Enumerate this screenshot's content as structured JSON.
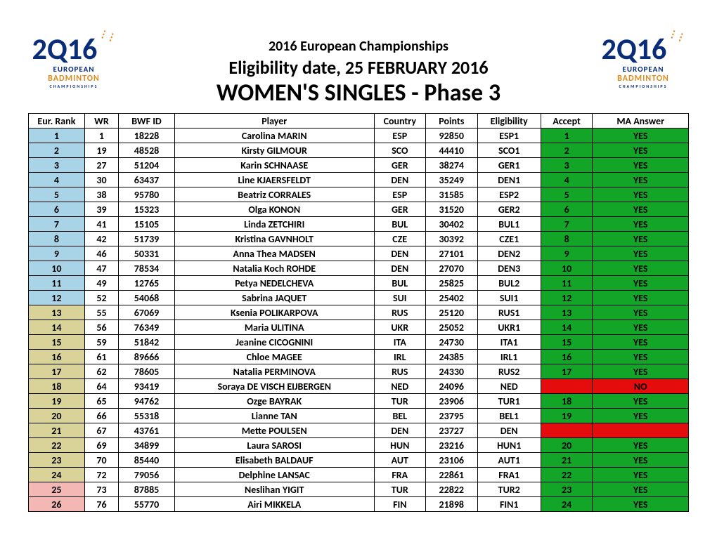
{
  "header": {
    "title1": "2016 European Championships",
    "title2": "Eligibility date, 25 FEBRUARY 2016",
    "title3": "WOMEN'S SINGLES - Phase 3"
  },
  "logo": {
    "top_glyphs": "2Q16",
    "line1": "EUROPEAN",
    "line2": "BADMINTON",
    "line3": "CHAMPIONSHIPS"
  },
  "table": {
    "columns": [
      "Eur. Rank",
      "WR",
      "BWF ID",
      "Player",
      "Country",
      "Points",
      "Eligibility",
      "Accept",
      "MA Answer"
    ],
    "colors": {
      "rank_blue": "#a9d4e8",
      "rank_olive": "#d9d39a",
      "rank_pink": "#f3b8b4",
      "yes_green": "#12a527",
      "no_red": "#e40c0c",
      "header_bg": "#ffffff",
      "border": "#000000",
      "text": "#000000"
    },
    "rows": [
      {
        "eur_rank": "1",
        "rank_color": "rank_blue",
        "wr": "1",
        "bwf": "18228",
        "player": "Carolina MARIN",
        "country": "ESP",
        "points": "92850",
        "elig": "ESP1",
        "accept": "1",
        "ma": "YES",
        "ma_color": "yes_green"
      },
      {
        "eur_rank": "2",
        "rank_color": "rank_blue",
        "wr": "19",
        "bwf": "48528",
        "player": "Kirsty GILMOUR",
        "country": "SCO",
        "points": "44410",
        "elig": "SCO1",
        "accept": "2",
        "ma": "YES",
        "ma_color": "yes_green"
      },
      {
        "eur_rank": "3",
        "rank_color": "rank_blue",
        "wr": "27",
        "bwf": "51204",
        "player": "Karin SCHNAASE",
        "country": "GER",
        "points": "38274",
        "elig": "GER1",
        "accept": "3",
        "ma": "YES",
        "ma_color": "yes_green"
      },
      {
        "eur_rank": "4",
        "rank_color": "rank_blue",
        "wr": "30",
        "bwf": "63437",
        "player": "Line KJAERSFELDT",
        "country": "DEN",
        "points": "35249",
        "elig": "DEN1",
        "accept": "4",
        "ma": "YES",
        "ma_color": "yes_green"
      },
      {
        "eur_rank": "5",
        "rank_color": "rank_blue",
        "wr": "38",
        "bwf": "95780",
        "player": "Beatriz CORRALES",
        "country": "ESP",
        "points": "31585",
        "elig": "ESP2",
        "accept": "5",
        "ma": "YES",
        "ma_color": "yes_green"
      },
      {
        "eur_rank": "6",
        "rank_color": "rank_blue",
        "wr": "39",
        "bwf": "15323",
        "player": "Olga KONON",
        "country": "GER",
        "points": "31520",
        "elig": "GER2",
        "accept": "6",
        "ma": "YES",
        "ma_color": "yes_green"
      },
      {
        "eur_rank": "7",
        "rank_color": "rank_blue",
        "wr": "41",
        "bwf": "15105",
        "player": "Linda ZETCHIRI",
        "country": "BUL",
        "points": "30402",
        "elig": "BUL1",
        "accept": "7",
        "ma": "YES",
        "ma_color": "yes_green"
      },
      {
        "eur_rank": "8",
        "rank_color": "rank_blue",
        "wr": "42",
        "bwf": "51739",
        "player": "Kristina GAVNHOLT",
        "country": "CZE",
        "points": "30392",
        "elig": "CZE1",
        "accept": "8",
        "ma": "YES",
        "ma_color": "yes_green"
      },
      {
        "eur_rank": "9",
        "rank_color": "rank_blue",
        "wr": "46",
        "bwf": "50331",
        "player": "Anna Thea MADSEN",
        "country": "DEN",
        "points": "27101",
        "elig": "DEN2",
        "accept": "9",
        "ma": "YES",
        "ma_color": "yes_green"
      },
      {
        "eur_rank": "10",
        "rank_color": "rank_blue",
        "wr": "47",
        "bwf": "78534",
        "player": "Natalia Koch ROHDE",
        "country": "DEN",
        "points": "27070",
        "elig": "DEN3",
        "accept": "10",
        "ma": "YES",
        "ma_color": "yes_green"
      },
      {
        "eur_rank": "11",
        "rank_color": "rank_blue",
        "wr": "49",
        "bwf": "12765",
        "player": "Petya NEDELCHEVA",
        "country": "BUL",
        "points": "25825",
        "elig": "BUL2",
        "accept": "11",
        "ma": "YES",
        "ma_color": "yes_green"
      },
      {
        "eur_rank": "12",
        "rank_color": "rank_blue",
        "wr": "52",
        "bwf": "54068",
        "player": "Sabrina JAQUET",
        "country": "SUI",
        "points": "25402",
        "elig": "SUI1",
        "accept": "12",
        "ma": "YES",
        "ma_color": "yes_green"
      },
      {
        "eur_rank": "13",
        "rank_color": "rank_olive",
        "wr": "55",
        "bwf": "67069",
        "player": "Ksenia POLIKARPOVA",
        "country": "RUS",
        "points": "25120",
        "elig": "RUS1",
        "accept": "13",
        "ma": "YES",
        "ma_color": "yes_green"
      },
      {
        "eur_rank": "14",
        "rank_color": "rank_olive",
        "wr": "56",
        "bwf": "76349",
        "player": "Maria ULITINA",
        "country": "UKR",
        "points": "25052",
        "elig": "UKR1",
        "accept": "14",
        "ma": "YES",
        "ma_color": "yes_green"
      },
      {
        "eur_rank": "15",
        "rank_color": "rank_olive",
        "wr": "59",
        "bwf": "51842",
        "player": "Jeanine CICOGNINI",
        "country": "ITA",
        "points": "24730",
        "elig": "ITA1",
        "accept": "15",
        "ma": "YES",
        "ma_color": "yes_green"
      },
      {
        "eur_rank": "16",
        "rank_color": "rank_olive",
        "wr": "61",
        "bwf": "89666",
        "player": "Chloe MAGEE",
        "country": "IRL",
        "points": "24385",
        "elig": "IRL1",
        "accept": "16",
        "ma": "YES",
        "ma_color": "yes_green"
      },
      {
        "eur_rank": "17",
        "rank_color": "rank_olive",
        "wr": "62",
        "bwf": "78605",
        "player": "Natalia PERMINOVA",
        "country": "RUS",
        "points": "24330",
        "elig": "RUS2",
        "accept": "17",
        "ma": "YES",
        "ma_color": "yes_green"
      },
      {
        "eur_rank": "18",
        "rank_color": "rank_olive",
        "wr": "64",
        "bwf": "93419",
        "player": "Soraya DE VISCH EIJBERGEN",
        "country": "NED",
        "points": "24096",
        "elig": "NED",
        "accept": "",
        "ma": "NO",
        "ma_color": "no_red"
      },
      {
        "eur_rank": "19",
        "rank_color": "rank_olive",
        "wr": "65",
        "bwf": "94762",
        "player": "Ozge BAYRAK",
        "country": "TUR",
        "points": "23906",
        "elig": "TUR1",
        "accept": "18",
        "ma": "YES",
        "ma_color": "yes_green"
      },
      {
        "eur_rank": "20",
        "rank_color": "rank_olive",
        "wr": "66",
        "bwf": "55318",
        "player": "Lianne TAN",
        "country": "BEL",
        "points": "23795",
        "elig": "BEL1",
        "accept": "19",
        "ma": "YES",
        "ma_color": "yes_green"
      },
      {
        "eur_rank": "21",
        "rank_color": "rank_olive",
        "wr": "67",
        "bwf": "43761",
        "player": "Mette POULSEN",
        "country": "DEN",
        "points": "23727",
        "elig": "DEN",
        "accept": "",
        "ma": "",
        "ma_color": "no_red"
      },
      {
        "eur_rank": "22",
        "rank_color": "rank_olive",
        "wr": "69",
        "bwf": "34899",
        "player": "Laura SAROSI",
        "country": "HUN",
        "points": "23216",
        "elig": "HUN1",
        "accept": "20",
        "ma": "YES",
        "ma_color": "yes_green"
      },
      {
        "eur_rank": "23",
        "rank_color": "rank_olive",
        "wr": "70",
        "bwf": "85440",
        "player": "Elisabeth BALDAUF",
        "country": "AUT",
        "points": "23106",
        "elig": "AUT1",
        "accept": "21",
        "ma": "YES",
        "ma_color": "yes_green"
      },
      {
        "eur_rank": "24",
        "rank_color": "rank_olive",
        "wr": "72",
        "bwf": "79056",
        "player": "Delphine LANSAC",
        "country": "FRA",
        "points": "22861",
        "elig": "FRA1",
        "accept": "22",
        "ma": "YES",
        "ma_color": "yes_green"
      },
      {
        "eur_rank": "25",
        "rank_color": "rank_pink",
        "wr": "73",
        "bwf": "87885",
        "player": "Neslihan YIGIT",
        "country": "TUR",
        "points": "22822",
        "elig": "TUR2",
        "accept": "23",
        "ma": "YES",
        "ma_color": "yes_green"
      },
      {
        "eur_rank": "26",
        "rank_color": "rank_pink",
        "wr": "76",
        "bwf": "55770",
        "player": "Airi MIKKELA",
        "country": "FIN",
        "points": "21898",
        "elig": "FIN1",
        "accept": "24",
        "ma": "YES",
        "ma_color": "yes_green"
      }
    ]
  }
}
